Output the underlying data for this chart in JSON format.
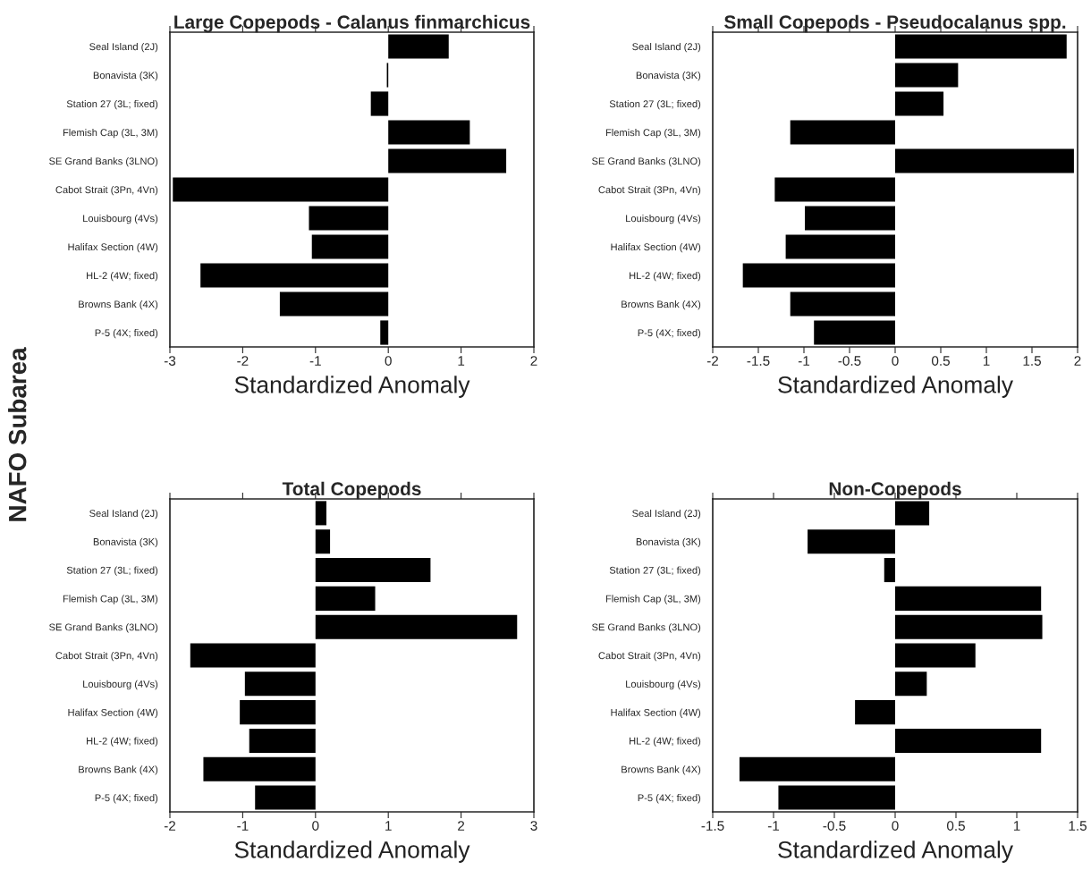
{
  "chart_data": [
    {
      "type": "bar",
      "orientation": "horizontal",
      "title": "Large Copepods - Calanus finmarchicus",
      "xlabel": "Standardized Anomaly",
      "ylabel": "NAFO Subarea",
      "categories": [
        "Seal Island (2J)",
        "Bonavista (3K)",
        "Station 27 (3L; fixed)",
        "Flemish Cap (3L, 3M)",
        "SE Grand Banks (3LNO)",
        "Cabot Strait (3Pn, 4Vn)",
        "Louisbourg (4Vs)",
        "Halifax Section (4W)",
        "HL-2 (4W; fixed)",
        "Browns Bank (4X)",
        "P-5 (4X; fixed)"
      ],
      "values": [
        0.83,
        -0.02,
        -0.24,
        1.12,
        1.62,
        -2.96,
        -1.09,
        -1.05,
        -2.58,
        -1.49,
        -0.11
      ],
      "color": "#000000",
      "xlim": [
        -3,
        2
      ],
      "xticks": [
        -3,
        -2,
        -1,
        0,
        1,
        2
      ],
      "grid": false
    },
    {
      "type": "bar",
      "orientation": "horizontal",
      "title": "Small Copepods - Pseudocalanus spp.",
      "xlabel": "Standardized Anomaly",
      "categories": [
        "Seal Island (2J)",
        "Bonavista (3K)",
        "Station 27 (3L; fixed)",
        "Flemish Cap (3L, 3M)",
        "SE Grand Banks (3LNO)",
        "Cabot Strait (3Pn, 4Vn)",
        "Louisbourg (4Vs)",
        "Halifax Section (4W)",
        "HL-2 (4W; fixed)",
        "Browns Bank (4X)",
        "P-5 (4X; fixed)"
      ],
      "values": [
        1.88,
        0.69,
        0.53,
        -1.15,
        1.96,
        -1.32,
        -0.99,
        -1.2,
        -1.67,
        -1.15,
        -0.89
      ],
      "color": "#000000",
      "xlim": [
        -2,
        2
      ],
      "xticks": [
        -2,
        -1.5,
        -1,
        -0.5,
        0,
        0.5,
        1,
        1.5,
        2
      ],
      "grid": false
    },
    {
      "type": "bar",
      "orientation": "horizontal",
      "title": "Total Copepods",
      "xlabel": "Standardized Anomaly",
      "categories": [
        "Seal Island (2J)",
        "Bonavista (3K)",
        "Station 27 (3L; fixed)",
        "Flemish Cap (3L, 3M)",
        "SE Grand Banks (3LNO)",
        "Cabot Strait (3Pn, 4Vn)",
        "Louisbourg (4Vs)",
        "Halifax Section (4W)",
        "HL-2 (4W; fixed)",
        "Browns Bank (4X)",
        "P-5 (4X; fixed)"
      ],
      "values": [
        0.15,
        0.2,
        1.58,
        0.82,
        2.77,
        -1.72,
        -0.97,
        -1.04,
        -0.91,
        -1.54,
        -0.83
      ],
      "color": "#000000",
      "xlim": [
        -2,
        3
      ],
      "xticks": [
        -2,
        -1,
        0,
        1,
        2,
        3
      ],
      "grid": false
    },
    {
      "type": "bar",
      "orientation": "horizontal",
      "title": "Non-Copepods",
      "xlabel": "Standardized Anomaly",
      "categories": [
        "Seal Island (2J)",
        "Bonavista (3K)",
        "Station 27 (3L; fixed)",
        "Flemish Cap (3L, 3M)",
        "SE Grand Banks (3LNO)",
        "Cabot Strait (3Pn, 4Vn)",
        "Louisbourg (4Vs)",
        "Halifax Section (4W)",
        "HL-2 (4W; fixed)",
        "Browns Bank (4X)",
        "P-5 (4X; fixed)"
      ],
      "values": [
        0.28,
        -0.72,
        -0.09,
        1.2,
        1.21,
        0.66,
        0.26,
        -0.33,
        1.2,
        -1.28,
        -0.96
      ],
      "color": "#000000",
      "xlim": [
        -1.5,
        1.5
      ],
      "xticks": [
        -1.5,
        -1,
        -0.5,
        0,
        0.5,
        1,
        1.5
      ],
      "grid": false
    }
  ]
}
